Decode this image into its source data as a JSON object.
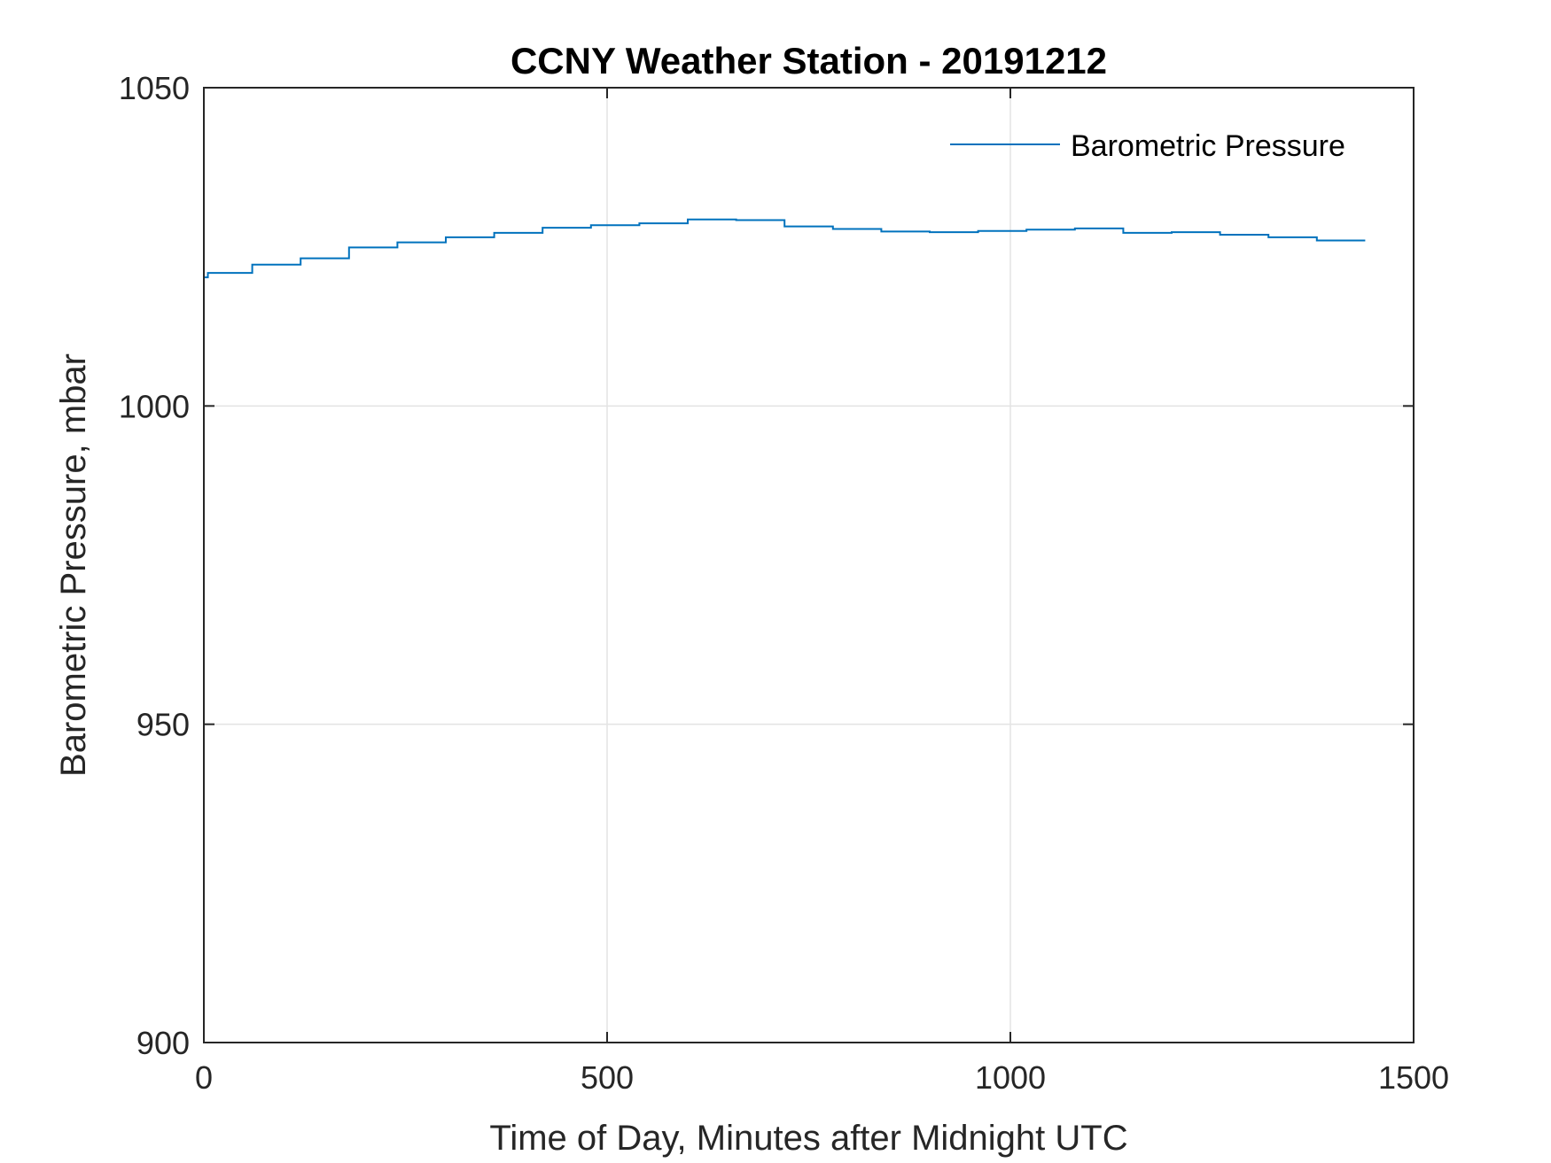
{
  "chart_data": {
    "type": "line",
    "title": "CCNY Weather Station - 20191212",
    "xlabel": "Time of Day, Minutes after Midnight UTC",
    "ylabel": "Barometric Pressure, mbar",
    "xlim": [
      0,
      1500
    ],
    "ylim": [
      900,
      1050
    ],
    "xticks": [
      0,
      500,
      1000,
      1500
    ],
    "yticks": [
      900,
      950,
      1000,
      1050
    ],
    "grid": true,
    "legend_position": "top-right",
    "step": true,
    "series": [
      {
        "name": "Barometric Pressure",
        "color": "#0072BD",
        "x": [
          0,
          5,
          60,
          120,
          180,
          240,
          300,
          360,
          420,
          480,
          540,
          600,
          660,
          720,
          780,
          840,
          900,
          960,
          1020,
          1080,
          1140,
          1200,
          1260,
          1320,
          1380,
          1440
        ],
        "y": [
          1020.2,
          1020.9,
          1022.2,
          1023.2,
          1024.9,
          1025.7,
          1026.5,
          1027.2,
          1028.0,
          1028.4,
          1028.7,
          1029.3,
          1029.2,
          1028.2,
          1027.8,
          1027.4,
          1027.3,
          1027.5,
          1027.7,
          1027.9,
          1027.2,
          1027.3,
          1026.9,
          1026.5,
          1026.0,
          1026.0
        ]
      }
    ]
  }
}
